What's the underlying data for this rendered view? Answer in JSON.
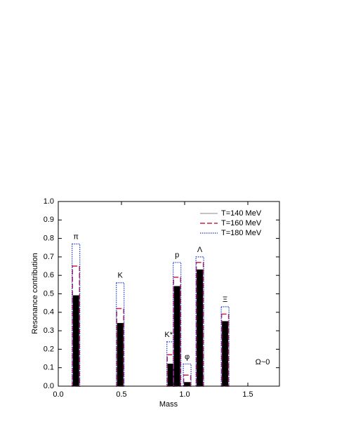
{
  "chart_data": {
    "type": "bar",
    "xlabel": "Mass",
    "ylabel": "Resonance contribution",
    "categories": [
      "π",
      "K",
      "K*",
      "p",
      "φ",
      "Λ",
      "Ξ"
    ],
    "x": [
      0.14,
      0.49,
      0.89,
      0.94,
      1.02,
      1.12,
      1.32
    ],
    "series": [
      {
        "name": "T=140 MeV",
        "color": "#000000",
        "values": [
          0.49,
          0.34,
          0.12,
          0.54,
          0.02,
          0.63,
          0.35
        ]
      },
      {
        "name": "T=160 MeV",
        "color": "#cc2244",
        "values": [
          0.65,
          0.42,
          0.17,
          0.59,
          0.06,
          0.67,
          0.39
        ]
      },
      {
        "name": "T=180 MeV",
        "color": "#1a33cc",
        "values": [
          0.77,
          0.56,
          0.24,
          0.67,
          0.12,
          0.7,
          0.43
        ]
      }
    ],
    "annotation": "Ω~0",
    "xlim": [
      0,
      1.75
    ],
    "xticks": [
      {
        "value": 0,
        "label": "0.0"
      },
      {
        "value": 0.5,
        "label": "0.5"
      },
      {
        "value": 1,
        "label": "1.0"
      },
      {
        "value": 1.5,
        "label": "1.5"
      }
    ],
    "ylim": [
      0,
      1
    ],
    "yticks": [
      {
        "value": 0,
        "label": "0.0"
      },
      {
        "value": 0.1,
        "label": "0.1"
      },
      {
        "value": 0.2,
        "label": "0.2"
      },
      {
        "value": 0.3,
        "label": "0.3"
      },
      {
        "value": 0.4,
        "label": "0.4"
      },
      {
        "value": 0.5,
        "label": "0.5"
      },
      {
        "value": 0.6,
        "label": "0.6"
      },
      {
        "value": 0.7,
        "label": "0.7"
      },
      {
        "value": 0.8,
        "label": "0.8"
      },
      {
        "value": 0.9,
        "label": "0.9"
      },
      {
        "value": 1,
        "label": "1.0"
      }
    ]
  }
}
